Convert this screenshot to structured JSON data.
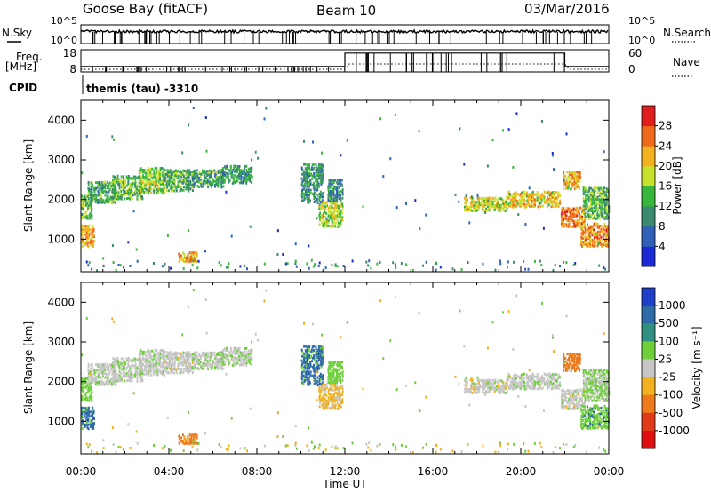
{
  "header": {
    "station": "Goose Bay (fitACF)",
    "beam": "Beam 10",
    "date": "03/Mar/2016"
  },
  "left_labels": {
    "nsky": "N.Sky",
    "freq_line1": "Freq.",
    "freq_line2": "[MHz]",
    "cpid": "CPID"
  },
  "right_labels": {
    "nsearch": "N.Search",
    "nave": "Nave"
  },
  "cpid_text": "themis (tau) -3310",
  "chart_data": [
    {
      "type": "line",
      "name": "noise-panel",
      "ytick_labels_left": [
        "10^5",
        "10^0"
      ],
      "ytick_labels_right": [
        "10^5",
        "10^0"
      ],
      "series": [
        {
          "label": "N.Sky",
          "description": "solid line near 10^5 with frequent drops to 10^0"
        },
        {
          "label": "N.Search",
          "description": "dotted line"
        }
      ]
    },
    {
      "type": "line",
      "name": "frequency-panel",
      "ytick_labels_left": [
        "18",
        "8"
      ],
      "ytick_labels_right": [
        "60",
        "0"
      ],
      "series": [
        {
          "label": "Freq.",
          "units": "MHz",
          "segments": [
            {
              "start_hr": 0,
              "end_hr": 12.0,
              "value": 10.5
            },
            {
              "start_hr": 12.0,
              "end_hr": 22.0,
              "value": 16.5
            },
            {
              "start_hr": 22.0,
              "end_hr": 24,
              "value": 10.5
            }
          ]
        },
        {
          "label": "Nave",
          "description": "dotted line, ~30 during 12:00-22:00"
        }
      ]
    },
    {
      "type": "heatmap",
      "name": "power-panel",
      "xlabel": "Time UT",
      "ylabel": "Slant Range [km]",
      "xlim": [
        0,
        24
      ],
      "ylim": [
        180,
        4500
      ],
      "xtick_labels": [
        "00:00",
        "04:00",
        "08:00",
        "12:00",
        "16:00",
        "20:00",
        "00:00"
      ],
      "ytick_labels": [
        "1000",
        "2000",
        "3000",
        "4000"
      ],
      "colorbar_title": "Power [dB]",
      "colorbar_ticks": [
        "4",
        "8",
        "12",
        "16",
        "20",
        "24",
        "28"
      ],
      "colors": [
        "#1a2bd6",
        "#3160b8",
        "#3b8a70",
        "#38b53b",
        "#c7e02a",
        "#f2b11f",
        "#ee6a1a",
        "#e01e1e"
      ]
    },
    {
      "type": "heatmap",
      "name": "velocity-panel",
      "xlabel": "Time UT",
      "ylabel": "Slant Range [km]",
      "xlim": [
        0,
        24
      ],
      "ylim": [
        180,
        4500
      ],
      "xtick_labels": [
        "00:00",
        "04:00",
        "08:00",
        "12:00",
        "16:00",
        "20:00",
        "00:00"
      ],
      "ytick_labels": [
        "1000",
        "2000",
        "3000",
        "4000"
      ],
      "colorbar_title": "Velocity [m s⁻¹]",
      "colorbar_ticks": [
        "1000",
        "500",
        "100",
        "25",
        "-25",
        "-100",
        "-500",
        "-1000"
      ],
      "colors": [
        "#1f3fc9",
        "#2f6aa8",
        "#2f9080",
        "#6fcf3a",
        "#c6c6c6",
        "#f2b11f",
        "#ee7a1a",
        "#e03a18",
        "#e01010"
      ]
    }
  ],
  "features": [
    {
      "t0": 0.0,
      "t1": 0.5,
      "r0": 1500,
      "r1": 2100,
      "p": 14,
      "v": 50
    },
    {
      "t0": 0.0,
      "t1": 0.6,
      "r0": 800,
      "r1": 1350,
      "p": 22,
      "v": 120
    },
    {
      "t0": 0.3,
      "t1": 1.6,
      "r0": 1900,
      "r1": 2450,
      "p": 12,
      "v": 5
    },
    {
      "t0": 1.4,
      "t1": 2.8,
      "r0": 2000,
      "r1": 2600,
      "p": 14,
      "v": 10
    },
    {
      "t0": 2.6,
      "t1": 3.8,
      "r0": 2150,
      "r1": 2800,
      "p": 16,
      "v": 5
    },
    {
      "t0": 3.7,
      "t1": 5.1,
      "r0": 2200,
      "r1": 2750,
      "p": 13,
      "v": 0
    },
    {
      "t0": 5.0,
      "t1": 6.5,
      "r0": 2300,
      "r1": 2750,
      "p": 12,
      "v": 10
    },
    {
      "t0": 6.4,
      "t1": 7.8,
      "r0": 2400,
      "r1": 2850,
      "p": 11,
      "v": 15
    },
    {
      "t0": 4.4,
      "t1": 5.3,
      "r0": 420,
      "r1": 680,
      "p": 22,
      "v": -120
    },
    {
      "t0": 10.0,
      "t1": 11.0,
      "r0": 1900,
      "r1": 2900,
      "p": 11,
      "v": 120
    },
    {
      "t0": 10.8,
      "t1": 11.9,
      "r0": 1300,
      "r1": 1950,
      "p": 18,
      "v": -40
    },
    {
      "t0": 11.2,
      "t1": 11.9,
      "r0": 1950,
      "r1": 2500,
      "p": 10,
      "v": 60
    },
    {
      "t0": 17.4,
      "t1": 19.4,
      "r0": 1700,
      "r1": 2050,
      "p": 18,
      "v": 0
    },
    {
      "t0": 19.4,
      "t1": 21.8,
      "r0": 1800,
      "r1": 2200,
      "p": 20,
      "v": 5
    },
    {
      "t0": 21.8,
      "t1": 22.9,
      "r0": 1300,
      "r1": 1800,
      "p": 25,
      "v": 0
    },
    {
      "t0": 21.9,
      "t1": 22.7,
      "r0": 2250,
      "r1": 2700,
      "p": 22,
      "v": -150
    },
    {
      "t0": 22.7,
      "t1": 24.0,
      "r0": 800,
      "r1": 1400,
      "p": 24,
      "v": 80
    },
    {
      "t0": 22.8,
      "t1": 24.0,
      "r0": 1500,
      "r1": 2300,
      "p": 14,
      "v": 30
    }
  ]
}
